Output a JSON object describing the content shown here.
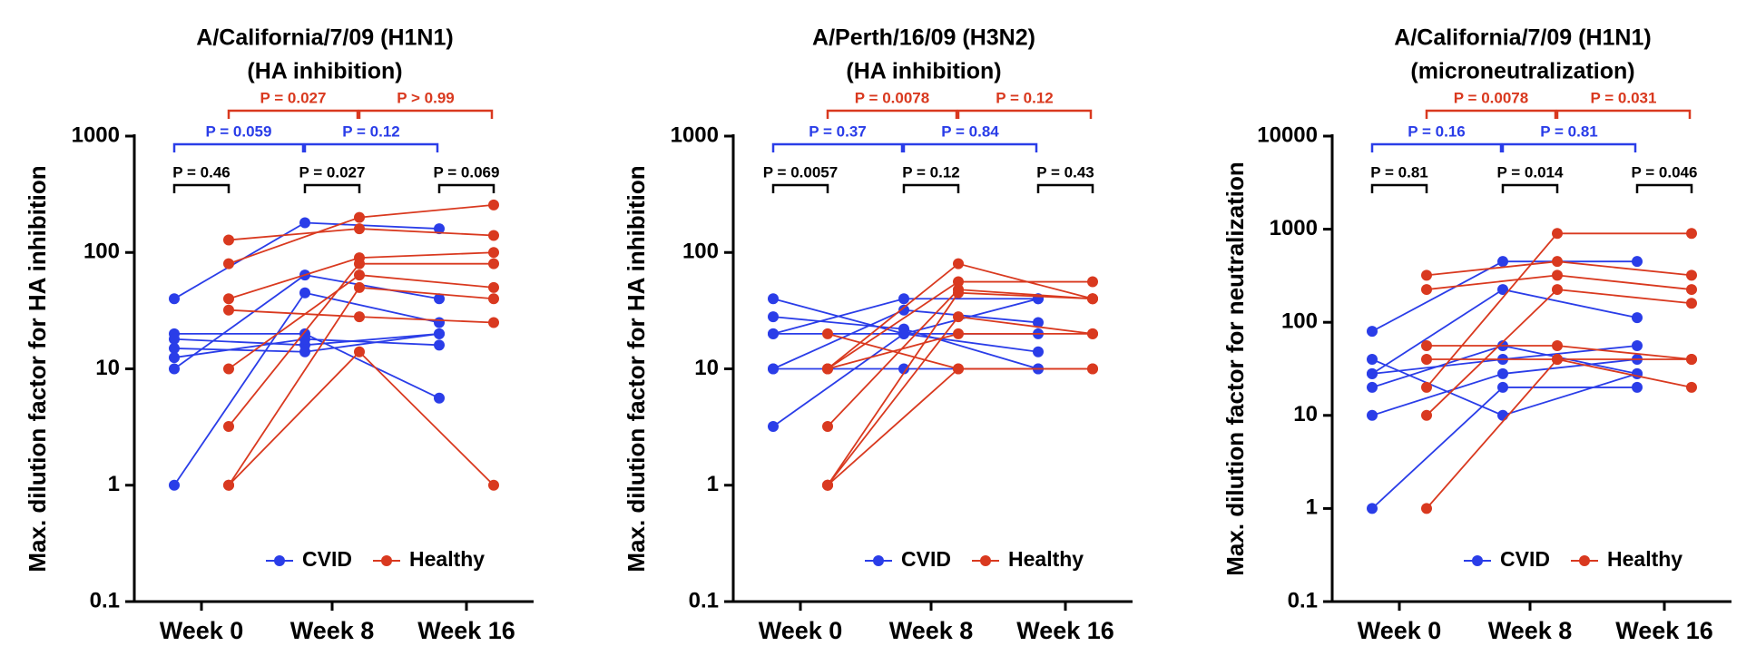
{
  "chart_data": [
    {
      "type": "line",
      "log_scale": true,
      "title": [
        "A/California/7/09 (H1N1)",
        "(HA inhibition)"
      ],
      "y_label": "Max. dilution factor for HA inhibition",
      "categories": [
        "Week 0",
        "Week 8",
        "Week 16"
      ],
      "ylim": [
        0.1,
        1000
      ],
      "yticks": [
        0.1,
        1,
        10,
        100,
        1000
      ],
      "legend": "bottom-right",
      "series": [
        {
          "name": "CVID",
          "color": "#2a3de8",
          "values": [
            [
              40,
              180,
              160
            ],
            [
              10,
              64,
              40
            ],
            [
              1,
              45,
              25
            ],
            [
              20,
              20,
              5.6
            ],
            [
              18,
              16,
              20
            ],
            [
              15,
              14,
              20
            ],
            [
              12.5,
              18,
              16
            ]
          ]
        },
        {
          "name": "Healthy",
          "color": "#d9391f",
          "values": [
            [
              128,
              160,
              140
            ],
            [
              80,
              200,
              256
            ],
            [
              40,
              90,
              100
            ],
            [
              32,
              28,
              25
            ],
            [
              10,
              64,
              50
            ],
            [
              3.2,
              80,
              80
            ],
            [
              1,
              50,
              40
            ],
            [
              1,
              14,
              1
            ]
          ]
        }
      ],
      "within_week_p": [
        "P = 0.46",
        "P = 0.027",
        "P = 0.069"
      ],
      "cvid_p": [
        "P = 0.059",
        "P = 0.12"
      ],
      "healthy_p": [
        "P = 0.027",
        "P > 0.99"
      ]
    },
    {
      "type": "line",
      "log_scale": true,
      "title": [
        "A/Perth/16/09 (H3N2)",
        "(HA inhibition)"
      ],
      "y_label": "Max. dilution factor for HA inhibition",
      "categories": [
        "Week 0",
        "Week 8",
        "Week 16"
      ],
      "ylim": [
        0.1,
        1000
      ],
      "yticks": [
        0.1,
        1,
        10,
        100,
        1000
      ],
      "legend": "bottom-right",
      "series": [
        {
          "name": "CVID",
          "color": "#2a3de8",
          "values": [
            [
              40,
              20,
              14
            ],
            [
              28,
              22,
              10
            ],
            [
              20,
              40,
              40
            ],
            [
              20,
              20,
              20
            ],
            [
              10,
              32,
              25
            ],
            [
              10,
              10,
              10
            ],
            [
              3.2,
              20,
              40
            ]
          ]
        },
        {
          "name": "Healthy",
          "color": "#d9391f",
          "values": [
            [
              20,
              10,
              10
            ],
            [
              10,
              80,
              40
            ],
            [
              10,
              56,
              56
            ],
            [
              10,
              20,
              20
            ],
            [
              3.2,
              48,
              40
            ],
            [
              1,
              45,
              40
            ],
            [
              1,
              28,
              20
            ],
            [
              1,
              10,
              10
            ]
          ]
        }
      ],
      "within_week_p": [
        "P = 0.0057",
        "P = 0.12",
        "P = 0.43"
      ],
      "cvid_p": [
        "P = 0.37",
        "P = 0.84"
      ],
      "healthy_p": [
        "P = 0.0078",
        "P = 0.12"
      ]
    },
    {
      "type": "line",
      "log_scale": true,
      "title": [
        "A/California/7/09 (H1N1)",
        "(microneutralization)"
      ],
      "y_label": "Max. dilution factor for neutralization",
      "categories": [
        "Week 0",
        "Week 8",
        "Week 16"
      ],
      "ylim": [
        0.1,
        10000
      ],
      "yticks": [
        0.1,
        1,
        10,
        100,
        1000,
        10000
      ],
      "legend": "bottom-right",
      "series": [
        {
          "name": "CVID",
          "color": "#2a3de8",
          "values": [
            [
              80,
              450,
              450
            ],
            [
              40,
              10,
              28
            ],
            [
              28,
              225,
              112
            ],
            [
              28,
              40,
              56
            ],
            [
              20,
              56,
              28
            ],
            [
              10,
              28,
              40
            ],
            [
              1,
              20,
              20
            ]
          ]
        },
        {
          "name": "Healthy",
          "color": "#d9391f",
          "values": [
            [
              320,
              450,
              320
            ],
            [
              225,
              320,
              225
            ],
            [
              56,
              56,
              40
            ],
            [
              40,
              40,
              20
            ],
            [
              20,
              900,
              900
            ],
            [
              10,
              225,
              160
            ],
            [
              1,
              40,
              40
            ]
          ]
        }
      ],
      "within_week_p": [
        "P = 0.81",
        "P = 0.014",
        "P = 0.046"
      ],
      "cvid_p": [
        "P = 0.16",
        "P = 0.81"
      ],
      "healthy_p": [
        "P = 0.0078",
        "P = 0.031"
      ]
    }
  ]
}
